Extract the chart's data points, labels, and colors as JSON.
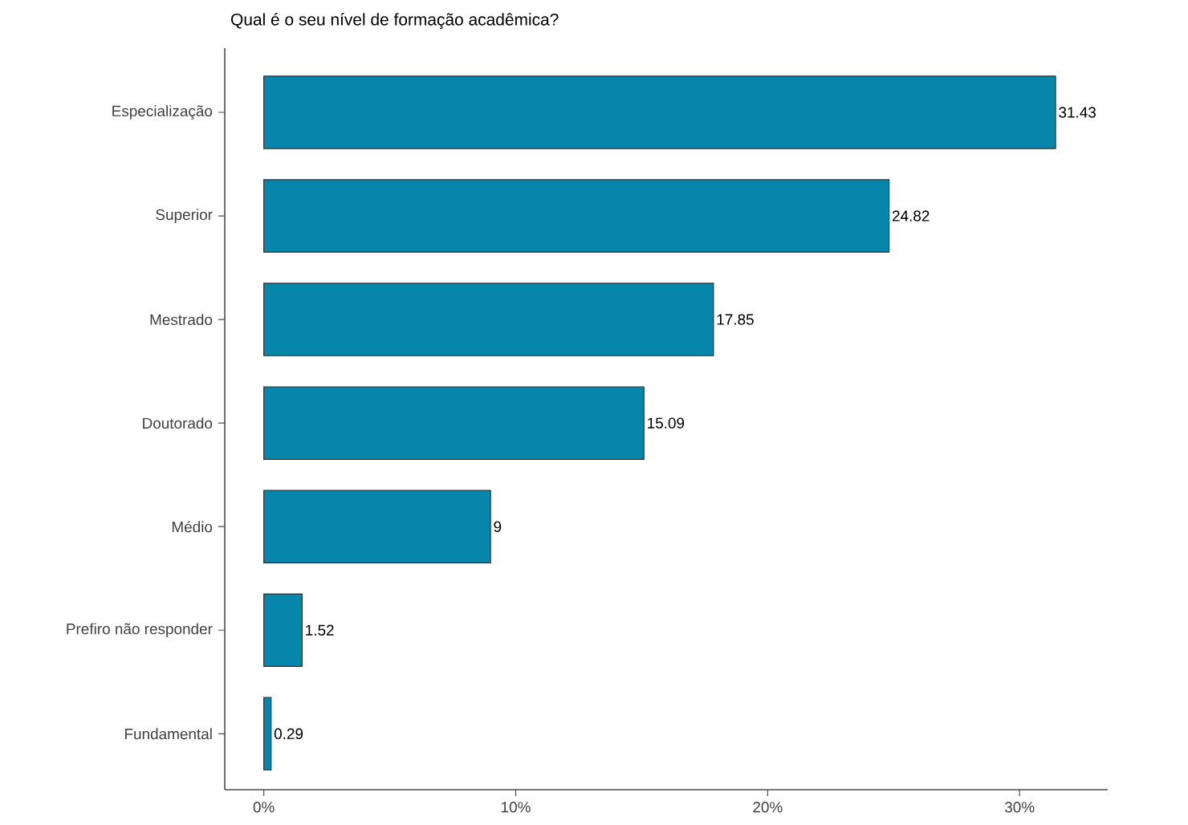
{
  "chart_data": {
    "type": "bar",
    "orientation": "horizontal",
    "title": "Qual é o seu nível de formação acadêmica?",
    "categories": [
      "Especialização",
      "Superior",
      "Mestrado",
      "Doutorado",
      "Médio",
      "Prefiro não responder",
      "Fundamental"
    ],
    "values": [
      31.43,
      24.82,
      17.85,
      15.09,
      9,
      1.52,
      0.29
    ],
    "value_labels": [
      "31.43",
      "24.82",
      "17.85",
      "15.09",
      "9",
      "1.52",
      "0.29"
    ],
    "color": "#0686ab",
    "xlim": [
      -1.55,
      33.5
    ],
    "xticks": [
      {
        "value": 0,
        "label": "0%"
      },
      {
        "value": 10,
        "label": "10%"
      },
      {
        "value": 20,
        "label": "20%"
      },
      {
        "value": 30,
        "label": "30%"
      }
    ],
    "grid": false
  }
}
